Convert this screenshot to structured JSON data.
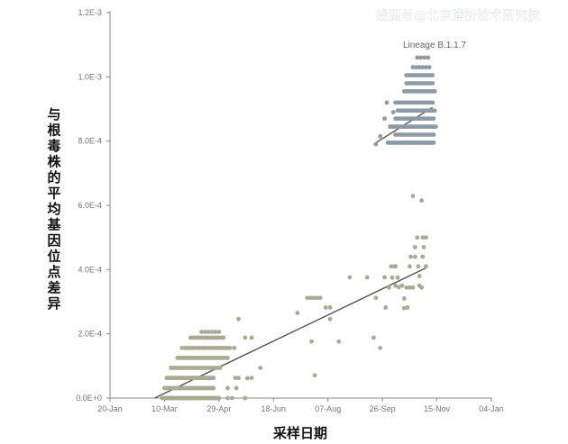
{
  "watermark": "搜狐号@北京清析技术研究院",
  "chart_data": {
    "type": "scatter",
    "xlabel": "采样日期",
    "ylabel": "与根毒株的平均基因位点差异",
    "x_ticks": [
      "20-Jan",
      "10-Mar",
      "29-Apr",
      "18-Jun",
      "07-Aug",
      "26-Sep",
      "15-Nov",
      "04-Jan"
    ],
    "x_range_days": [
      0,
      350
    ],
    "y_ticks": [
      "0.0E+0",
      "2.0E-4",
      "4.0E-4",
      "6.0E-4",
      "8.0E-4",
      "1.0E-3",
      "1.2E-3"
    ],
    "ylim": [
      0,
      0.0012
    ],
    "grid": false,
    "colors": {
      "other": "#a9ab93",
      "lineage": "#8c9ba6",
      "trend": "#555555"
    },
    "annotations": [
      {
        "text": "Lineage B.1.1.7"
      }
    ],
    "series": [
      {
        "key": "other",
        "point_groups": [
          {
            "x": [
              48,
              100
            ],
            "y": 0.0,
            "n": 48
          },
          {
            "x": [
              50,
              95
            ],
            "y": 3.1e-05,
            "n": 40
          },
          {
            "x": [
              52,
              95
            ],
            "y": 6.25e-05,
            "n": 32
          },
          {
            "x": [
              56,
              101
            ],
            "y": 9.4e-05,
            "n": 28
          },
          {
            "x": [
              62,
              108
            ],
            "y": 0.000125,
            "n": 25
          },
          {
            "x": [
              66,
              110
            ],
            "y": 0.000156,
            "n": 20
          },
          {
            "x": [
              74,
              104
            ],
            "y": 0.000188,
            "n": 15
          },
          {
            "x": [
              84,
              100
            ],
            "y": 0.000206,
            "n": 6
          }
        ],
        "points": [
          {
            "x": 118,
            "y": 0.000246
          },
          {
            "x": 124,
            "y": 0.000188
          },
          {
            "x": 114,
            "y": 0.000156
          },
          {
            "x": 130,
            "y": 0.000188
          },
          {
            "x": 138,
            "y": 9.4e-05
          },
          {
            "x": 115,
            "y": 6.25e-05
          },
          {
            "x": 116,
            "y": 3.1e-05
          },
          {
            "x": 118,
            "y": 6.25e-05
          },
          {
            "x": 126,
            "y": 6.2e-05
          },
          {
            "x": 104,
            "y": 0.000188
          },
          {
            "x": 108,
            "y": 3.1e-05
          },
          {
            "x": 130,
            "y": 6.25e-05
          },
          {
            "x": 124,
            "y": 0.0
          },
          {
            "x": 112,
            "y": 0.0
          },
          {
            "x": 108,
            "y": 0.0
          },
          {
            "x": 172,
            "y": 0.000265
          },
          {
            "x": 181,
            "y": 0.000312
          },
          {
            "x": 184,
            "y": 0.000312
          },
          {
            "x": 187,
            "y": 0.000312
          },
          {
            "x": 190,
            "y": 0.000312
          },
          {
            "x": 193,
            "y": 0.000312
          },
          {
            "x": 198,
            "y": 0.000282
          },
          {
            "x": 185,
            "y": 0.000176
          },
          {
            "x": 188,
            "y": 7.1e-05
          },
          {
            "x": 202,
            "y": 0.000246
          },
          {
            "x": 202,
            "y": 0.000282
          },
          {
            "x": 210,
            "y": 0.000176
          },
          {
            "x": 220,
            "y": 0.000376
          },
          {
            "x": 236,
            "y": 0.000376
          },
          {
            "x": 242,
            "y": 0.000188
          },
          {
            "x": 244,
            "y": 0.000312
          },
          {
            "x": 248,
            "y": 0.000156
          },
          {
            "x": 253,
            "y": 0.000282
          },
          {
            "x": 252,
            "y": 0.000376
          },
          {
            "x": 256,
            "y": 0.000344
          },
          {
            "x": 259,
            "y": 0.000375
          },
          {
            "x": 258,
            "y": 0.00041
          },
          {
            "x": 261,
            "y": 0.00041
          },
          {
            "x": 262,
            "y": 0.00035
          },
          {
            "x": 264,
            "y": 0.000375
          },
          {
            "x": 265,
            "y": 0.000345
          },
          {
            "x": 268,
            "y": 0.00035
          },
          {
            "x": 270,
            "y": 0.00031
          },
          {
            "x": 270,
            "y": 0.00028
          },
          {
            "x": 272,
            "y": 0.000344
          },
          {
            "x": 273,
            "y": 0.000282
          },
          {
            "x": 275,
            "y": 0.00041
          },
          {
            "x": 276,
            "y": 0.00044
          },
          {
            "x": 278,
            "y": 0.000344
          },
          {
            "x": 280,
            "y": 0.00044
          },
          {
            "x": 280,
            "y": 0.00047
          },
          {
            "x": 282,
            "y": 0.0005
          },
          {
            "x": 283,
            "y": 0.00041
          },
          {
            "x": 284,
            "y": 0.00038
          },
          {
            "x": 284,
            "y": 0.00035
          },
          {
            "x": 286,
            "y": 0.000344
          },
          {
            "x": 287,
            "y": 0.00044
          },
          {
            "x": 287,
            "y": 0.0005
          },
          {
            "x": 288,
            "y": 0.00047
          },
          {
            "x": 278,
            "y": 0.000629
          },
          {
            "x": 286,
            "y": 0.000615
          },
          {
            "x": 290,
            "y": 0.0005
          },
          {
            "x": 290,
            "y": 0.00041
          },
          {
            "x": 275,
            "y": 0.000344
          },
          {
            "x": 262,
            "y": 0.00041
          }
        ]
      },
      {
        "key": "lineage",
        "point_groups": [
          {
            "x": [
              255,
              297
            ],
            "y": 0.000795,
            "n": 32
          },
          {
            "x": [
              262,
              297
            ],
            "y": 0.00082,
            "n": 16
          },
          {
            "x": [
              257,
              299
            ],
            "y": 0.000845,
            "n": 34
          },
          {
            "x": [
              262,
              297
            ],
            "y": 0.00087,
            "n": 18
          },
          {
            "x": [
              264,
              298
            ],
            "y": 0.000895,
            "n": 30
          },
          {
            "x": [
              262,
              296
            ],
            "y": 0.00092,
            "n": 16
          },
          {
            "x": [
              270,
              298
            ],
            "y": 0.000955,
            "n": 20
          },
          {
            "x": [
              272,
              296
            ],
            "y": 0.00098,
            "n": 12
          },
          {
            "x": [
              272,
              296
            ],
            "y": 0.001005,
            "n": 12
          },
          {
            "x": [
              278,
              293
            ],
            "y": 0.00103,
            "n": 6
          },
          {
            "x": [
              282,
              292
            ],
            "y": 0.00106,
            "n": 4
          }
        ],
        "points": [
          {
            "x": 244,
            "y": 0.00079
          },
          {
            "x": 248,
            "y": 0.000815
          },
          {
            "x": 252,
            "y": 0.00087
          },
          {
            "x": 254,
            "y": 0.00092
          },
          {
            "x": 260,
            "y": 0.00089
          }
        ]
      }
    ],
    "trendlines": [
      {
        "key": "other",
        "from": {
          "x": 41,
          "y": 0.0
        },
        "to": {
          "x": 290,
          "y": 0.000405
        }
      },
      {
        "key": "lineage",
        "from": {
          "x": 244,
          "y": 0.000795
        },
        "to": {
          "x": 296,
          "y": 0.000905
        }
      }
    ]
  }
}
